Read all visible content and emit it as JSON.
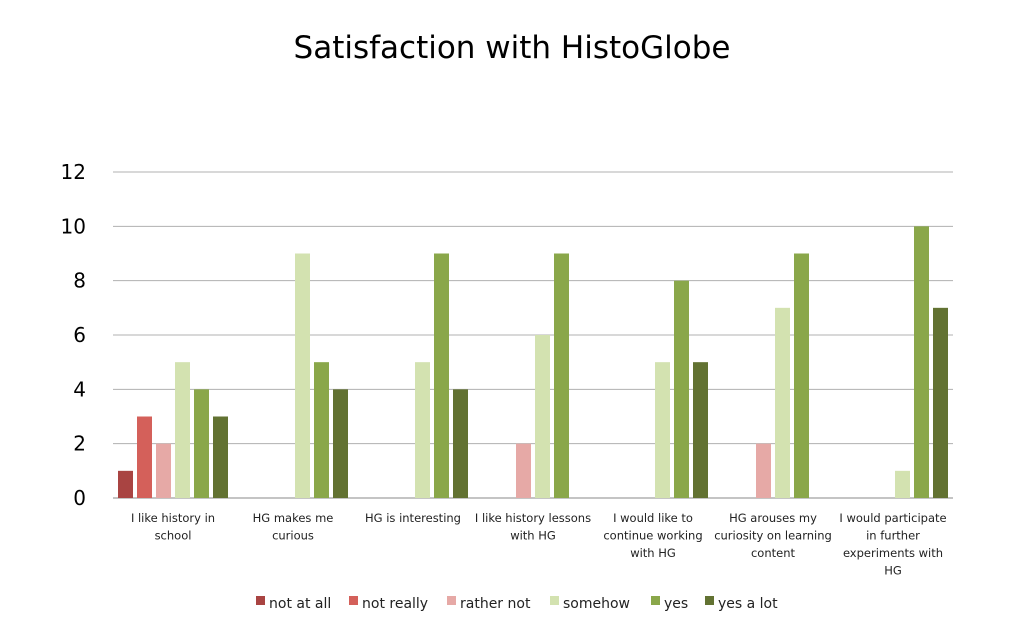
{
  "chart_data": {
    "type": "bar",
    "title": "Satisfaction with HistoGlobe",
    "ylim": [
      0,
      12
    ],
    "yticks": [
      0,
      2,
      4,
      6,
      8,
      10,
      12
    ],
    "grid": true,
    "legend_position": "bottom",
    "categories": [
      [
        "I like history  in",
        "school"
      ],
      [
        "HG makes me",
        "curious"
      ],
      [
        "HG is interesting"
      ],
      [
        "I like history lessons",
        "with HG"
      ],
      [
        "I would like to",
        "continue working",
        "with HG"
      ],
      [
        "HG arouses my",
        "curiosity on learning",
        "content"
      ],
      [
        "I would participate",
        "in further",
        "experiments with",
        "HG"
      ]
    ],
    "series": [
      {
        "name": "not at all",
        "color": "#a94442",
        "values": [
          1,
          0,
          0,
          0,
          0,
          0,
          0
        ]
      },
      {
        "name": "not really",
        "color": "#d4605a",
        "values": [
          3,
          0,
          0,
          0,
          0,
          0,
          0
        ]
      },
      {
        "name": "rather not",
        "color": "#e6a9a6",
        "values": [
          2,
          0,
          0,
          2,
          0,
          2,
          0
        ]
      },
      {
        "name": "somehow",
        "color": "#d3e2b0",
        "values": [
          5,
          9,
          5,
          6,
          5,
          7,
          1
        ]
      },
      {
        "name": "yes",
        "color": "#8aa74a",
        "values": [
          4,
          5,
          9,
          9,
          8,
          9,
          10
        ]
      },
      {
        "name": "yes a lot",
        "color": "#627232",
        "values": [
          3,
          4,
          4,
          0,
          5,
          0,
          7
        ]
      }
    ]
  }
}
